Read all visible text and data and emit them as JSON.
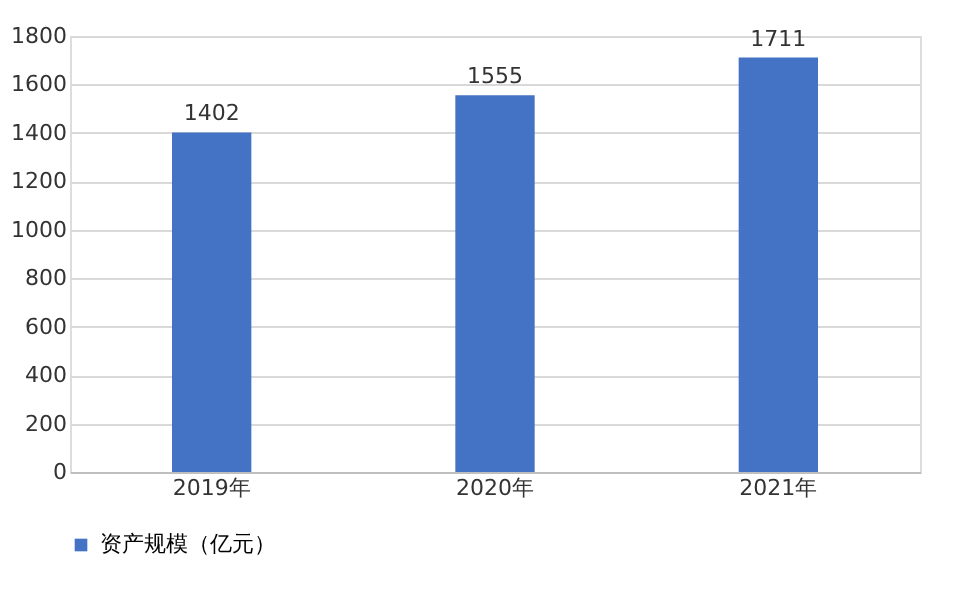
{
  "chart_data": {
    "type": "bar",
    "categories": [
      "2019年",
      "2020年",
      "2021年"
    ],
    "series": [
      {
        "name": "资产规模（亿元）",
        "color": "#4472c4",
        "values": [
          1402,
          1555,
          1711
        ]
      }
    ],
    "ylim": [
      0,
      1800
    ],
    "yticks": [
      0,
      200,
      400,
      600,
      800,
      1000,
      1200,
      1400,
      1600,
      1800
    ],
    "grid": "y",
    "legend": "bottom",
    "data_labels": true
  }
}
